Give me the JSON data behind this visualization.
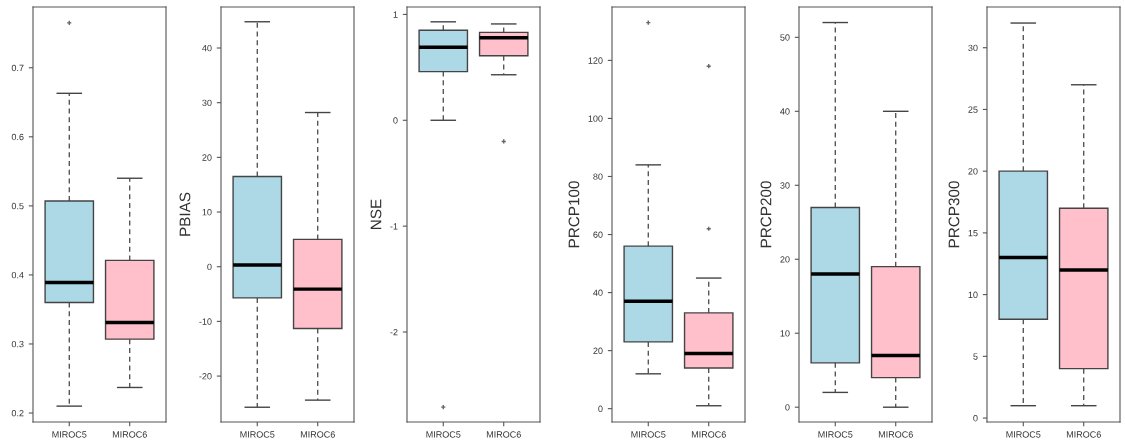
{
  "chart_data": [
    {
      "type": "box",
      "categories": [
        "MIROC5",
        "MIROC6"
      ],
      "colors": [
        "#add8e6",
        "#ffc0cb"
      ],
      "ylim": [
        0.187,
        0.788
      ],
      "yticks": [
        0.2,
        0.3,
        0.4,
        0.5,
        0.6,
        0.7
      ],
      "grid": false,
      "boxes": [
        {
          "low": 0.21,
          "q1": 0.36,
          "median": 0.389,
          "q3": 0.507,
          "high": 0.663,
          "outliers": [
            0.765
          ]
        },
        {
          "low": 0.237,
          "q1": 0.307,
          "median": 0.331,
          "q3": 0.421,
          "high": 0.54
        }
      ]
    },
    {
      "type": "box",
      "ylabel": "PBIAS",
      "categories": [
        "MIROC5",
        "MIROC6"
      ],
      "colors": [
        "#add8e6",
        "#ffc0cb"
      ],
      "ylim": [
        -28.4,
        47.5
      ],
      "yticks": [
        -20,
        -10,
        0,
        10,
        20,
        30,
        40
      ],
      "grid": false,
      "boxes": [
        {
          "low": -25.7,
          "q1": -5.7,
          "median": 0.3,
          "q3": 16.5,
          "high": 44.8
        },
        {
          "low": -24.4,
          "q1": -11.3,
          "median": -4.1,
          "q3": 5,
          "high": 28.2
        }
      ]
    },
    {
      "type": "box",
      "ylabel": "NSE",
      "categories": [
        "MIROC5",
        "MIROC6"
      ],
      "colors": [
        "#add8e6",
        "#ffc0cb"
      ],
      "ylim": [
        -2.85,
        1.07
      ],
      "yticks": [
        -2,
        -1,
        0,
        1
      ],
      "grid": false,
      "boxes": [
        {
          "low": 0.0,
          "q1": 0.46,
          "median": 0.69,
          "q3": 0.85,
          "high": 0.93,
          "outliers": [
            -2.71
          ]
        },
        {
          "low": 0.43,
          "q1": 0.61,
          "median": 0.78,
          "q3": 0.83,
          "high": 0.91,
          "outliers": [
            -0.2
          ]
        }
      ]
    },
    {
      "type": "box",
      "ylabel": "PRCP100",
      "categories": [
        "MIROC5",
        "MIROC6"
      ],
      "colors": [
        "#add8e6",
        "#ffc0cb"
      ],
      "ylim": [
        -4.6,
        138.4
      ],
      "yticks": [
        0,
        20,
        40,
        60,
        80,
        100,
        120
      ],
      "grid": false,
      "boxes": [
        {
          "low": 12,
          "q1": 23,
          "median": 37,
          "q3": 56,
          "high": 84,
          "outliers": [
            133
          ]
        },
        {
          "low": 1,
          "q1": 14,
          "median": 19,
          "q3": 33,
          "high": 45,
          "outliers": [
            62,
            118
          ]
        }
      ]
    },
    {
      "type": "box",
      "ylabel": "PRCP200",
      "categories": [
        "MIROC5",
        "MIROC6"
      ],
      "colors": [
        "#add8e6",
        "#ffc0cb"
      ],
      "ylim": [
        -2.0,
        54.1
      ],
      "yticks": [
        0,
        10,
        20,
        30,
        40,
        50
      ],
      "grid": false,
      "boxes": [
        {
          "low": 2,
          "q1": 6,
          "median": 18,
          "q3": 27,
          "high": 52
        },
        {
          "low": 0,
          "q1": 4,
          "median": 7,
          "q3": 19,
          "high": 40
        }
      ]
    },
    {
      "type": "box",
      "ylabel": "PRCP300",
      "categories": [
        "MIROC5",
        "MIROC6"
      ],
      "colors": [
        "#add8e6",
        "#ffc0cb"
      ],
      "ylim": [
        -0.32,
        33.3
      ],
      "yticks": [
        0,
        5,
        10,
        15,
        20,
        25,
        30
      ],
      "grid": false,
      "boxes": [
        {
          "low": 1,
          "q1": 8,
          "median": 13,
          "q3": 20,
          "high": 32
        },
        {
          "low": 1,
          "q1": 4,
          "median": 12,
          "q3": 17,
          "high": 27
        }
      ]
    }
  ]
}
